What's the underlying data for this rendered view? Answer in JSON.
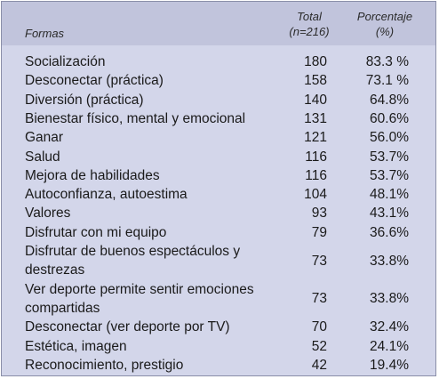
{
  "header": {
    "formas": "Formas",
    "total_line1": "Total",
    "total_line2": "(n=216)",
    "pct_line1": "Porcentaje",
    "pct_line2": "(%)"
  },
  "rows": [
    {
      "label": [
        "Socialización"
      ],
      "total": "180",
      "pct": "83.3 %"
    },
    {
      "label": [
        "Desconectar (práctica)"
      ],
      "total": "158",
      "pct": "73.1 %"
    },
    {
      "label": [
        "Diversión (práctica)"
      ],
      "total": "140",
      "pct": "64.8%"
    },
    {
      "label": [
        "Bienestar físico, mental y emocional"
      ],
      "total": "131",
      "pct": "60.6%"
    },
    {
      "label": [
        "Ganar"
      ],
      "total": "121",
      "pct": "56.0%"
    },
    {
      "label": [
        "Salud"
      ],
      "total": "116",
      "pct": "53.7%"
    },
    {
      "label": [
        "Mejora de habilidades"
      ],
      "total": "116",
      "pct": "53.7%"
    },
    {
      "label": [
        "Autoconfianza, autoestima"
      ],
      "total": "104",
      "pct": "48.1%"
    },
    {
      "label": [
        "Valores"
      ],
      "total": "93",
      "pct": "43.1%"
    },
    {
      "label": [
        "Disfrutar con mi equipo"
      ],
      "total": "79",
      "pct": "36.6%"
    },
    {
      "label": [
        "Disfrutar de buenos espectáculos y",
        "destrezas"
      ],
      "total": "73",
      "pct": "33.8%"
    },
    {
      "label": [
        "Ver deporte permite sentir emociones",
        "compartidas"
      ],
      "total": "73",
      "pct": "33.8%"
    },
    {
      "label": [
        "Desconectar (ver deporte por TV)"
      ],
      "total": "70",
      "pct": "32.4%"
    },
    {
      "label": [
        "Estética, imagen"
      ],
      "total": "52",
      "pct": "24.1%"
    },
    {
      "label": [
        "Reconocimiento, prestigio"
      ],
      "total": "42",
      "pct": "19.4%"
    }
  ]
}
